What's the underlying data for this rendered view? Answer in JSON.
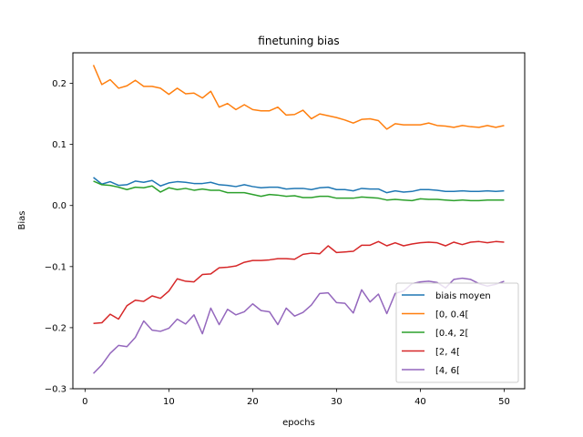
{
  "chart_data": {
    "type": "line",
    "title": "finetuning bias",
    "xlabel": "epochs",
    "ylabel": "Bias",
    "xlim": [
      -1.45,
      52.45
    ],
    "ylim": [
      -0.3,
      0.25
    ],
    "xticks": [
      0,
      10,
      20,
      30,
      40,
      50
    ],
    "yticks": [
      -0.3,
      -0.2,
      -0.1,
      0.0,
      0.1,
      0.2
    ],
    "ytick_labels": [
      "−0.3",
      "−0.2",
      "−0.1",
      "0.0",
      "0.1",
      "0.2"
    ],
    "xtick_labels": [
      "0",
      "10",
      "20",
      "30",
      "40",
      "50"
    ],
    "grid": false,
    "legend_position": "lower-right",
    "x": [
      1,
      2,
      3,
      4,
      5,
      6,
      7,
      8,
      9,
      10,
      11,
      12,
      13,
      14,
      15,
      16,
      17,
      18,
      19,
      20,
      21,
      22,
      23,
      24,
      25,
      26,
      27,
      28,
      29,
      30,
      31,
      32,
      33,
      34,
      35,
      36,
      37,
      38,
      39,
      40,
      41,
      42,
      43,
      44,
      45,
      46,
      47,
      48,
      49,
      50
    ],
    "series": [
      {
        "name": "biais moyen",
        "color": "#1f77b4",
        "values": [
          0.046,
          0.035,
          0.039,
          0.033,
          0.034,
          0.04,
          0.038,
          0.041,
          0.032,
          0.037,
          0.039,
          0.038,
          0.036,
          0.036,
          0.038,
          0.034,
          0.033,
          0.031,
          0.034,
          0.031,
          0.029,
          0.03,
          0.03,
          0.027,
          0.028,
          0.028,
          0.026,
          0.029,
          0.03,
          0.026,
          0.026,
          0.024,
          0.028,
          0.027,
          0.027,
          0.021,
          0.024,
          0.022,
          0.023,
          0.026,
          0.026,
          0.025,
          0.023,
          0.023,
          0.024,
          0.023,
          0.023,
          0.024,
          0.023,
          0.024
        ]
      },
      {
        "name": "[0, 0.4[",
        "color": "#ff7f0e",
        "values": [
          0.23,
          0.198,
          0.206,
          0.192,
          0.196,
          0.205,
          0.195,
          0.195,
          0.192,
          0.182,
          0.192,
          0.183,
          0.184,
          0.176,
          0.187,
          0.161,
          0.167,
          0.157,
          0.165,
          0.157,
          0.155,
          0.155,
          0.161,
          0.148,
          0.149,
          0.156,
          0.142,
          0.15,
          0.147,
          0.144,
          0.14,
          0.135,
          0.141,
          0.142,
          0.139,
          0.125,
          0.134,
          0.132,
          0.132,
          0.132,
          0.135,
          0.131,
          0.13,
          0.128,
          0.131,
          0.129,
          0.128,
          0.131,
          0.128,
          0.131
        ]
      },
      {
        "name": "[0.4, 2[",
        "color": "#2ca02c",
        "values": [
          0.04,
          0.034,
          0.033,
          0.03,
          0.026,
          0.03,
          0.029,
          0.032,
          0.022,
          0.029,
          0.026,
          0.028,
          0.025,
          0.027,
          0.025,
          0.025,
          0.021,
          0.021,
          0.021,
          0.018,
          0.015,
          0.018,
          0.017,
          0.015,
          0.016,
          0.013,
          0.013,
          0.015,
          0.015,
          0.012,
          0.012,
          0.012,
          0.014,
          0.013,
          0.012,
          0.009,
          0.01,
          0.009,
          0.008,
          0.011,
          0.01,
          0.01,
          0.009,
          0.008,
          0.009,
          0.008,
          0.008,
          0.009,
          0.009,
          0.009
        ]
      },
      {
        "name": "[2, 4[",
        "color": "#d62728",
        "values": [
          -0.193,
          -0.192,
          -0.178,
          -0.186,
          -0.164,
          -0.155,
          -0.157,
          -0.148,
          -0.152,
          -0.14,
          -0.12,
          -0.124,
          -0.125,
          -0.113,
          -0.112,
          -0.102,
          -0.101,
          -0.099,
          -0.093,
          -0.09,
          -0.09,
          -0.089,
          -0.087,
          -0.087,
          -0.088,
          -0.08,
          -0.078,
          -0.079,
          -0.066,
          -0.077,
          -0.076,
          -0.075,
          -0.065,
          -0.065,
          -0.059,
          -0.066,
          -0.061,
          -0.066,
          -0.063,
          -0.061,
          -0.06,
          -0.061,
          -0.066,
          -0.06,
          -0.064,
          -0.06,
          -0.059,
          -0.061,
          -0.059,
          -0.06
        ]
      },
      {
        "name": "[4, 6[",
        "color": "#9467bd",
        "values": [
          -0.275,
          -0.261,
          -0.242,
          -0.229,
          -0.231,
          -0.216,
          -0.189,
          -0.204,
          -0.206,
          -0.201,
          -0.186,
          -0.194,
          -0.179,
          -0.21,
          -0.168,
          -0.195,
          -0.17,
          -0.179,
          -0.174,
          -0.161,
          -0.172,
          -0.174,
          -0.195,
          -0.168,
          -0.181,
          -0.175,
          -0.163,
          -0.144,
          -0.143,
          -0.159,
          -0.16,
          -0.176,
          -0.138,
          -0.158,
          -0.145,
          -0.177,
          -0.144,
          -0.14,
          -0.128,
          -0.125,
          -0.124,
          -0.126,
          -0.135,
          -0.121,
          -0.119,
          -0.121,
          -0.128,
          -0.132,
          -0.129,
          -0.124
        ]
      }
    ]
  }
}
